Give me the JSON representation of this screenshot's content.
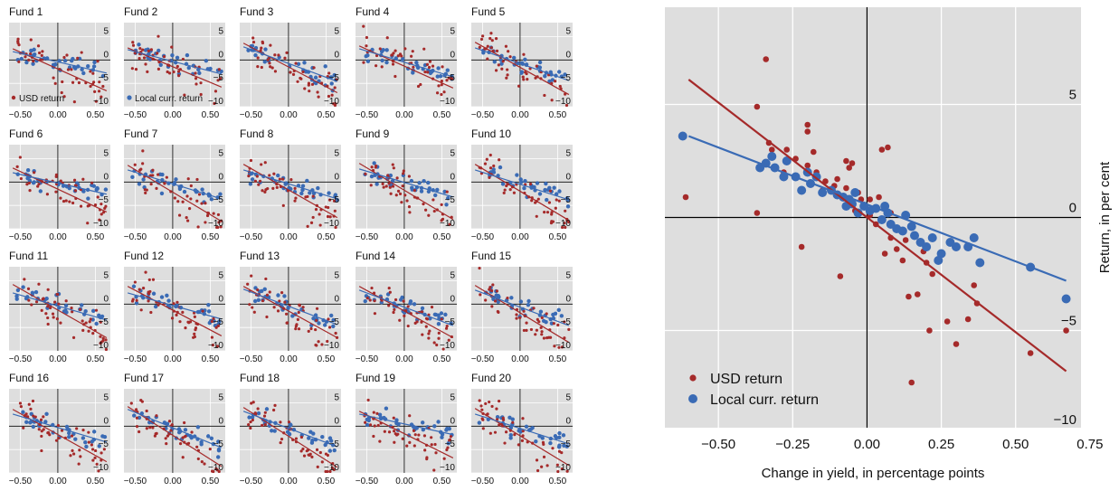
{
  "colors": {
    "usd": "#a52a2a",
    "local": "#3a6bb5",
    "panel_bg": "#dedede",
    "grid": "#ffffff",
    "axis": "#000000"
  },
  "chart_data": [
    {
      "type": "scatter",
      "layout": "small-multiples",
      "panels": [
        "Fund 1",
        "Fund 2",
        "Fund 3",
        "Fund 4",
        "Fund 5",
        "Fund 6",
        "Fund 7",
        "Fund 8",
        "Fund 9",
        "Fund 10",
        "Fund 11",
        "Fund 12",
        "Fund 13",
        "Fund 14",
        "Fund 15",
        "Fund 16",
        "Fund 17",
        "Fund 18",
        "Fund 19",
        "Fund 20"
      ],
      "xlim": [
        -0.65,
        0.7
      ],
      "ylim": [
        -10,
        8
      ],
      "xticks": [
        "−0.50",
        "0.00",
        "0.50"
      ],
      "yticks": [
        "5",
        "0",
        "−5",
        "−10"
      ],
      "legend_labels": [
        "USD return",
        "Local curr. return"
      ],
      "fits": [
        {
          "usd": [
            [
              -0.6,
              2.4
            ],
            [
              0.65,
              -6.6
            ]
          ],
          "local": [
            [
              -0.6,
              1.8
            ],
            [
              0.65,
              -2.8
            ]
          ]
        },
        {
          "usd": [
            [
              -0.6,
              2.6
            ],
            [
              0.65,
              -5.8
            ]
          ],
          "local": [
            [
              -0.6,
              2.2
            ],
            [
              0.65,
              -3.0
            ]
          ]
        },
        {
          "usd": [
            [
              -0.6,
              3.6
            ],
            [
              0.65,
              -7.0
            ]
          ],
          "local": [
            [
              -0.6,
              2.8
            ],
            [
              0.65,
              -4.6
            ]
          ]
        },
        {
          "usd": [
            [
              -0.6,
              3.0
            ],
            [
              0.65,
              -6.0
            ]
          ],
          "local": [
            [
              -0.6,
              2.4
            ],
            [
              0.65,
              -3.6
            ]
          ]
        },
        {
          "usd": [
            [
              -0.6,
              3.8
            ],
            [
              0.65,
              -7.4
            ]
          ],
          "local": [
            [
              -0.6,
              2.6
            ],
            [
              0.65,
              -4.4
            ]
          ]
        },
        {
          "usd": [
            [
              -0.6,
              3.0
            ],
            [
              0.65,
              -6.4
            ]
          ],
          "local": [
            [
              -0.6,
              2.0
            ],
            [
              0.65,
              -2.6
            ]
          ]
        },
        {
          "usd": [
            [
              -0.6,
              3.6
            ],
            [
              0.65,
              -8.4
            ]
          ],
          "local": [
            [
              -0.6,
              2.6
            ],
            [
              0.65,
              -3.6
            ]
          ]
        },
        {
          "usd": [
            [
              -0.6,
              3.8
            ],
            [
              0.65,
              -7.6
            ]
          ],
          "local": [
            [
              -0.6,
              2.6
            ],
            [
              0.65,
              -3.6
            ]
          ]
        },
        {
          "usd": [
            [
              -0.6,
              4.0
            ],
            [
              0.65,
              -8.0
            ]
          ],
          "local": [
            [
              -0.6,
              2.8
            ],
            [
              0.65,
              -3.2
            ]
          ]
        },
        {
          "usd": [
            [
              -0.6,
              3.8
            ],
            [
              0.65,
              -8.2
            ]
          ],
          "local": [
            [
              -0.6,
              2.6
            ],
            [
              0.65,
              -3.8
            ]
          ]
        },
        {
          "usd": [
            [
              -0.6,
              4.2
            ],
            [
              0.65,
              -7.2
            ]
          ],
          "local": [
            [
              -0.6,
              2.4
            ],
            [
              0.65,
              -3.4
            ]
          ]
        },
        {
          "usd": [
            [
              -0.6,
              3.8
            ],
            [
              0.65,
              -6.8
            ]
          ],
          "local": [
            [
              -0.6,
              2.4
            ],
            [
              0.65,
              -3.2
            ]
          ]
        },
        {
          "usd": [
            [
              -0.6,
              3.8
            ],
            [
              0.65,
              -7.2
            ]
          ],
          "local": [
            [
              -0.6,
              3.2
            ],
            [
              0.65,
              -4.4
            ]
          ]
        },
        {
          "usd": [
            [
              -0.6,
              3.8
            ],
            [
              0.65,
              -7.2
            ]
          ],
          "local": [
            [
              -0.6,
              3.0
            ],
            [
              0.65,
              -4.6
            ]
          ]
        },
        {
          "usd": [
            [
              -0.6,
              4.0
            ],
            [
              0.65,
              -8.2
            ]
          ],
          "local": [
            [
              -0.6,
              3.0
            ],
            [
              0.65,
              -4.6
            ]
          ]
        },
        {
          "usd": [
            [
              -0.6,
              3.6
            ],
            [
              0.65,
              -7.6
            ]
          ],
          "local": [
            [
              -0.6,
              2.6
            ],
            [
              0.65,
              -3.4
            ]
          ]
        },
        {
          "usd": [
            [
              -0.6,
              4.2
            ],
            [
              0.65,
              -8.6
            ]
          ],
          "local": [
            [
              -0.6,
              3.6
            ],
            [
              0.65,
              -4.6
            ]
          ]
        },
        {
          "usd": [
            [
              -0.6,
              4.0
            ],
            [
              0.65,
              -8.8
            ]
          ],
          "local": [
            [
              -0.6,
              3.2
            ],
            [
              0.65,
              -4.4
            ]
          ]
        },
        {
          "usd": [
            [
              -0.6,
              3.2
            ],
            [
              0.65,
              -6.8
            ]
          ],
          "local": [
            [
              -0.6,
              2.6
            ],
            [
              0.65,
              -1.8
            ]
          ]
        },
        {
          "usd": [
            [
              -0.6,
              3.8
            ],
            [
              0.65,
              -8.4
            ]
          ],
          "local": [
            [
              -0.6,
              2.6
            ],
            [
              0.65,
              -3.8
            ]
          ]
        }
      ]
    },
    {
      "type": "scatter",
      "xlabel": "Change in yield, in percentage points",
      "ylabel": "Return, in per cent",
      "xlim": [
        -0.68,
        0.72
      ],
      "ylim": [
        -9.3,
        9.3
      ],
      "xticks": [
        {
          "v": -0.5,
          "label": "−0.50"
        },
        {
          "v": -0.25,
          "label": "−0.25"
        },
        {
          "v": 0.0,
          "label": "0.00"
        },
        {
          "v": 0.25,
          "label": "0.25"
        },
        {
          "v": 0.5,
          "label": "0.50"
        },
        {
          "v": 0.75,
          "label": "0.75"
        }
      ],
      "yticks": [
        {
          "v": 5,
          "label": "5"
        },
        {
          "v": 0,
          "label": "0"
        },
        {
          "v": -5,
          "label": "−5"
        },
        {
          "v": -10,
          "label": "−10"
        }
      ],
      "legend": {
        "position": "bottom-left"
      },
      "series": [
        {
          "name": "USD return",
          "color": "#a52a2a",
          "points": [
            [
              -0.61,
              0.9
            ],
            [
              -0.34,
              7.0
            ],
            [
              -0.37,
              4.9
            ],
            [
              -0.37,
              0.2
            ],
            [
              -0.33,
              3.3
            ],
            [
              -0.32,
              3.0
            ],
            [
              -0.27,
              3.0
            ],
            [
              -0.24,
              2.6
            ],
            [
              -0.2,
              4.1
            ],
            [
              -0.2,
              3.8
            ],
            [
              -0.18,
              2.9
            ],
            [
              -0.22,
              -1.3
            ],
            [
              -0.2,
              2.3
            ],
            [
              -0.17,
              2.0
            ],
            [
              -0.14,
              1.6
            ],
            [
              -0.11,
              1.4
            ],
            [
              -0.09,
              -2.6
            ],
            [
              -0.07,
              2.5
            ],
            [
              -0.07,
              1.3
            ],
            [
              -0.06,
              2.2
            ],
            [
              -0.05,
              2.4
            ],
            [
              -0.03,
              1.1
            ],
            [
              -0.02,
              0.8
            ],
            [
              -0.01,
              0.5
            ],
            [
              0.01,
              0.8
            ],
            [
              0.03,
              0.4
            ],
            [
              0.04,
              0.9
            ],
            [
              0.05,
              3.0
            ],
            [
              0.07,
              3.1
            ],
            [
              0.08,
              -0.9
            ],
            [
              0.1,
              -1.4
            ],
            [
              0.12,
              -1.9
            ],
            [
              0.14,
              -3.5
            ],
            [
              0.15,
              -7.3
            ],
            [
              0.17,
              -3.4
            ],
            [
              0.2,
              -2.0
            ],
            [
              0.21,
              -5.0
            ],
            [
              0.27,
              -4.6
            ],
            [
              0.3,
              -5.6
            ],
            [
              0.34,
              -4.5
            ],
            [
              0.37,
              -3.8
            ],
            [
              0.55,
              -6.0
            ],
            [
              0.67,
              -5.0
            ],
            [
              0.03,
              -0.3
            ],
            [
              0.06,
              -1.6
            ],
            [
              -0.1,
              1.7
            ],
            [
              0.22,
              -2.5
            ],
            [
              -0.04,
              0.3
            ],
            [
              0.01,
              0.1
            ],
            [
              -0.28,
              2.0
            ],
            [
              0.13,
              -1.0
            ],
            [
              0.36,
              -3.0
            ],
            [
              -0.15,
              1.2
            ],
            [
              0.08,
              0.2
            ],
            [
              0.19,
              -1.5
            ]
          ]
        },
        {
          "name": "Local curr. return",
          "color": "#3a6bb5",
          "points": [
            [
              -0.62,
              3.6
            ],
            [
              -0.36,
              2.2
            ],
            [
              -0.34,
              2.4
            ],
            [
              -0.32,
              2.7
            ],
            [
              -0.31,
              2.2
            ],
            [
              -0.28,
              1.8
            ],
            [
              -0.27,
              2.5
            ],
            [
              -0.24,
              1.8
            ],
            [
              -0.22,
              1.2
            ],
            [
              -0.19,
              1.5
            ],
            [
              -0.17,
              1.8
            ],
            [
              -0.15,
              1.1
            ],
            [
              -0.12,
              1.2
            ],
            [
              -0.1,
              1.0
            ],
            [
              -0.08,
              0.9
            ],
            [
              -0.07,
              0.5
            ],
            [
              -0.06,
              0.8
            ],
            [
              -0.04,
              1.1
            ],
            [
              -0.03,
              0.2
            ],
            [
              -0.01,
              0.5
            ],
            [
              0.01,
              0.3
            ],
            [
              0.03,
              0.4
            ],
            [
              0.05,
              -0.1
            ],
            [
              0.07,
              0.2
            ],
            [
              0.08,
              -0.3
            ],
            [
              0.1,
              -0.5
            ],
            [
              0.12,
              -0.6
            ],
            [
              0.13,
              0.1
            ],
            [
              0.15,
              -0.4
            ],
            [
              0.18,
              -1.1
            ],
            [
              0.2,
              -1.3
            ],
            [
              0.22,
              -0.9
            ],
            [
              0.25,
              -1.6
            ],
            [
              0.28,
              -1.1
            ],
            [
              0.3,
              -1.3
            ],
            [
              0.34,
              -1.3
            ],
            [
              0.36,
              -0.9
            ],
            [
              0.38,
              -2.0
            ],
            [
              0.55,
              -2.2
            ],
            [
              0.67,
              -3.6
            ],
            [
              0.06,
              0.5
            ],
            [
              -0.2,
              2.0
            ],
            [
              0.16,
              -0.8
            ],
            [
              -0.05,
              0.6
            ],
            [
              0.24,
              -1.9
            ]
          ]
        }
      ],
      "fits": [
        {
          "name": "USD return",
          "points": [
            [
              -0.6,
              6.1
            ],
            [
              0.67,
              -6.8
            ]
          ]
        },
        {
          "name": "Local curr. return",
          "points": [
            [
              -0.6,
              3.6
            ],
            [
              0.67,
              -2.8
            ]
          ]
        }
      ]
    }
  ]
}
